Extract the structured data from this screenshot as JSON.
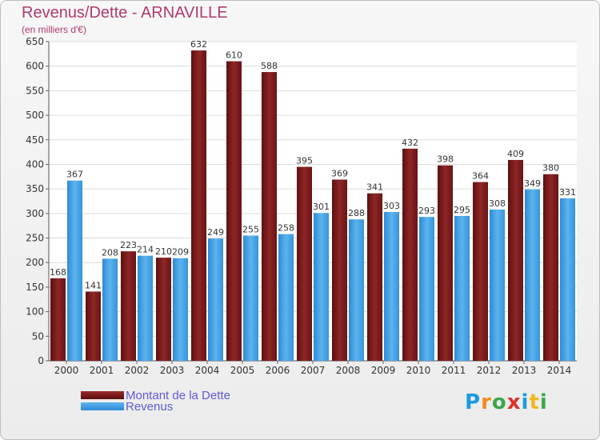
{
  "title": "Revenus/Dette - ARNAVILLE",
  "subtitle": "(en milliers d'€)",
  "logo": {
    "text": "Proxiti",
    "letters": [
      {
        "ch": "P",
        "color": "#1c9be0"
      },
      {
        "ch": "r",
        "color": "#f08c1c"
      },
      {
        "ch": "o",
        "color": "#3aa84c"
      },
      {
        "ch": "x",
        "color": "#e0302c"
      },
      {
        "ch": "i",
        "color": "#1c9be0"
      },
      {
        "ch": "t",
        "color": "#f0b81c"
      },
      {
        "ch": "i",
        "color": "#3aa84c"
      }
    ]
  },
  "chart_data": {
    "type": "bar",
    "categories": [
      "2000",
      "2001",
      "2002",
      "2003",
      "2004",
      "2005",
      "2006",
      "2007",
      "2008",
      "2009",
      "2010",
      "2011",
      "2012",
      "2013",
      "2014"
    ],
    "series": [
      {
        "name": "Montant de la Dette",
        "color": "#8b1a1a",
        "values": [
          168,
          141,
          223,
          210,
          632,
          610,
          588,
          395,
          369,
          341,
          432,
          398,
          364,
          409,
          380
        ]
      },
      {
        "name": "Revenus",
        "color": "#3c9be3",
        "values": [
          367,
          208,
          214,
          209,
          249,
          255,
          258,
          301,
          288,
          303,
          293,
          295,
          308,
          349,
          331
        ]
      }
    ],
    "ylim": [
      0,
      650
    ],
    "yticks": [
      0,
      50,
      100,
      150,
      200,
      250,
      300,
      350,
      400,
      450,
      500,
      550,
      600,
      650
    ],
    "grid": true,
    "legend": "bottom-left"
  }
}
